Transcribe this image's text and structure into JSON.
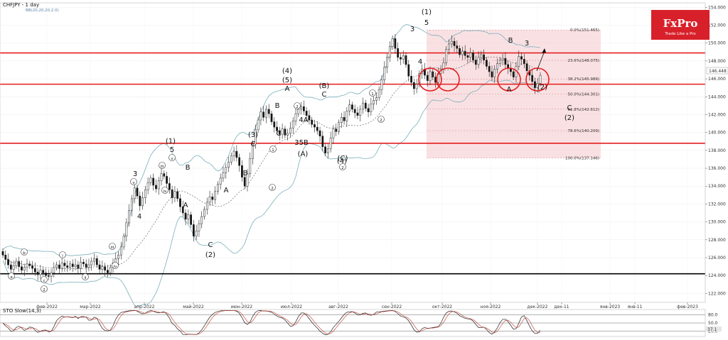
{
  "header": {
    "title": "CHFJPY - 1 day",
    "indicator": "BB(20,20,20,2.0)"
  },
  "logo": {
    "brand": "FxPro",
    "tagline": "Trade Like a Pro",
    "color": "#d8202a"
  },
  "stochastic": {
    "label": "STO Slow(14,3)",
    "levels": [
      "80.0",
      "50.0",
      "20.0"
    ],
    "value": "37.1",
    "value_color": "#1a1a1a"
  },
  "current_price": {
    "label": "146.448",
    "value": 146.448
  },
  "colors": {
    "candle_up": "#ffffff",
    "candle_down": "#111111",
    "bands": "#7aaeba",
    "basis": "#555555",
    "hline": "#e41e1e",
    "support": "#000000",
    "fib_zone": "#f4c9cc"
  },
  "chart_data": {
    "type": "candlestick",
    "symbol": "CHFJPY",
    "timeframe": "1 day",
    "y_ticks": [
      "154.000",
      "152.000",
      "150.000",
      "148.000",
      "146.000",
      "144.000",
      "142.000",
      "140.000",
      "138.000",
      "136.000",
      "134.000",
      "132.000",
      "130.000",
      "128.000",
      "126.000",
      "124.000",
      "122.000"
    ],
    "x_ticks": [
      "фев-2022",
      "мар-2022",
      "апр-2022",
      "май-2022",
      "июн-2022",
      "июл-2022",
      "авг-2022",
      "сен-2022",
      "окт-2022",
      "ноя-2022",
      "дек-2022",
      "дек-11",
      "янв-2023",
      "янв-11",
      "фев-2023"
    ],
    "ylim": [
      121,
      154.5
    ],
    "horizontal_lines": [
      {
        "value": 148.9,
        "color": "#e41e1e"
      },
      {
        "value": 145.4,
        "color": "#e41e1e"
      },
      {
        "value": 138.8,
        "color": "#e41e1e"
      },
      {
        "value": 124.2,
        "color": "#000000"
      }
    ],
    "fibonacci": [
      {
        "label": "0.0%(151.465)",
        "value": 151.465
      },
      {
        "label": "23.6%(148.075)",
        "value": 148.075
      },
      {
        "label": "38.2%(145.989)",
        "value": 145.989
      },
      {
        "label": "50.0%(144.301)",
        "value": 144.301
      },
      {
        "label": "61.8%(142.612)",
        "value": 142.612
      },
      {
        "label": "78.6%(140.209)",
        "value": 140.209
      },
      {
        "label": "100.0%(137.146)",
        "value": 137.146
      }
    ],
    "closes": [
      126.3,
      125.8,
      125.2,
      124.7,
      125.1,
      125.6,
      125.0,
      124.6,
      124.9,
      125.3,
      125.1,
      124.8,
      124.4,
      124.1,
      124.6,
      124.3,
      124.0,
      123.9,
      124.3,
      124.9,
      125.2,
      124.8,
      125.4,
      125.1,
      124.9,
      125.3,
      125.0,
      125.2,
      124.8,
      125.5,
      125.3,
      124.9,
      125.2,
      125.6,
      125.9,
      125.2,
      124.7,
      125.0,
      124.6,
      124.3,
      124.9,
      125.4,
      125.9,
      126.3,
      127.2,
      128.4,
      129.9,
      131.3,
      132.6,
      133.8,
      132.9,
      131.8,
      132.7,
      133.6,
      134.4,
      134.9,
      134.1,
      133.7,
      134.6,
      135.4,
      135.1,
      134.3,
      133.6,
      132.7,
      133.4,
      132.6,
      131.7,
      131.0,
      130.3,
      130.8,
      129.7,
      128.4,
      129.0,
      129.8,
      130.6,
      131.4,
      132.2,
      132.8,
      132.5,
      133.4,
      134.2,
      134.9,
      135.5,
      136.1,
      136.7,
      137.4,
      137.9,
      137.2,
      136.3,
      135.0,
      134.0,
      135.4,
      137.1,
      138.7,
      140.3,
      141.4,
      142.3,
      141.7,
      142.6,
      142.1,
      141.2,
      140.6,
      140.2,
      139.8,
      140.4,
      139.7,
      139.9,
      140.5,
      141.3,
      142.1,
      142.6,
      142.9,
      142.4,
      141.9,
      141.4,
      140.9,
      140.6,
      140.2,
      139.6,
      138.4,
      137.7,
      138.2,
      139.4,
      140.4,
      140.1,
      141.1,
      141.7,
      141.3,
      142.4,
      143.1,
      142.6,
      142.2,
      141.9,
      142.6,
      143.3,
      142.7,
      142.3,
      143.2,
      143.6,
      143.9,
      144.8,
      145.9,
      147.3,
      148.4,
      149.6,
      150.5,
      149.4,
      148.4,
      148.2,
      148.6,
      147.6,
      146.3,
      145.6,
      144.9,
      145.4,
      146.6,
      147.1,
      146.4,
      145.8,
      146.8,
      146.2,
      145.6,
      146.6,
      147.1,
      147.8,
      149.3,
      149.9,
      150.2,
      149.7,
      149.4,
      148.7,
      149.1,
      148.6,
      148.4,
      148.9,
      148.1,
      147.6,
      148.4,
      148.7,
      148.1,
      147.4,
      146.8,
      146.2,
      147.1,
      147.7,
      148.1,
      148.3,
      147.6,
      147.2,
      146.8,
      146.2,
      147.4,
      148.5,
      148.2,
      147.7,
      146.9,
      146.4,
      145.7,
      145.0,
      145.5,
      146.4
    ],
    "annotations": [
      "(1)",
      "5",
      "3",
      "4",
      "(4)",
      "a",
      "b",
      "c",
      "i",
      "ii",
      "2",
      "iii",
      "iv",
      "v",
      "3",
      "4",
      "(1)",
      "5",
      "v",
      "iii",
      "iv",
      "B",
      "A",
      "C",
      "(2)",
      "(3)",
      "C",
      "A",
      "B",
      "1",
      "2",
      "(4)",
      "(5)",
      "A",
      "B",
      "C",
      "2",
      "4A",
      "35B",
      "(A)",
      "(B)",
      "C",
      "(C)",
      "2",
      "1",
      "2",
      "(2)",
      "3",
      "B",
      "A",
      "C",
      "(2)"
    ]
  }
}
